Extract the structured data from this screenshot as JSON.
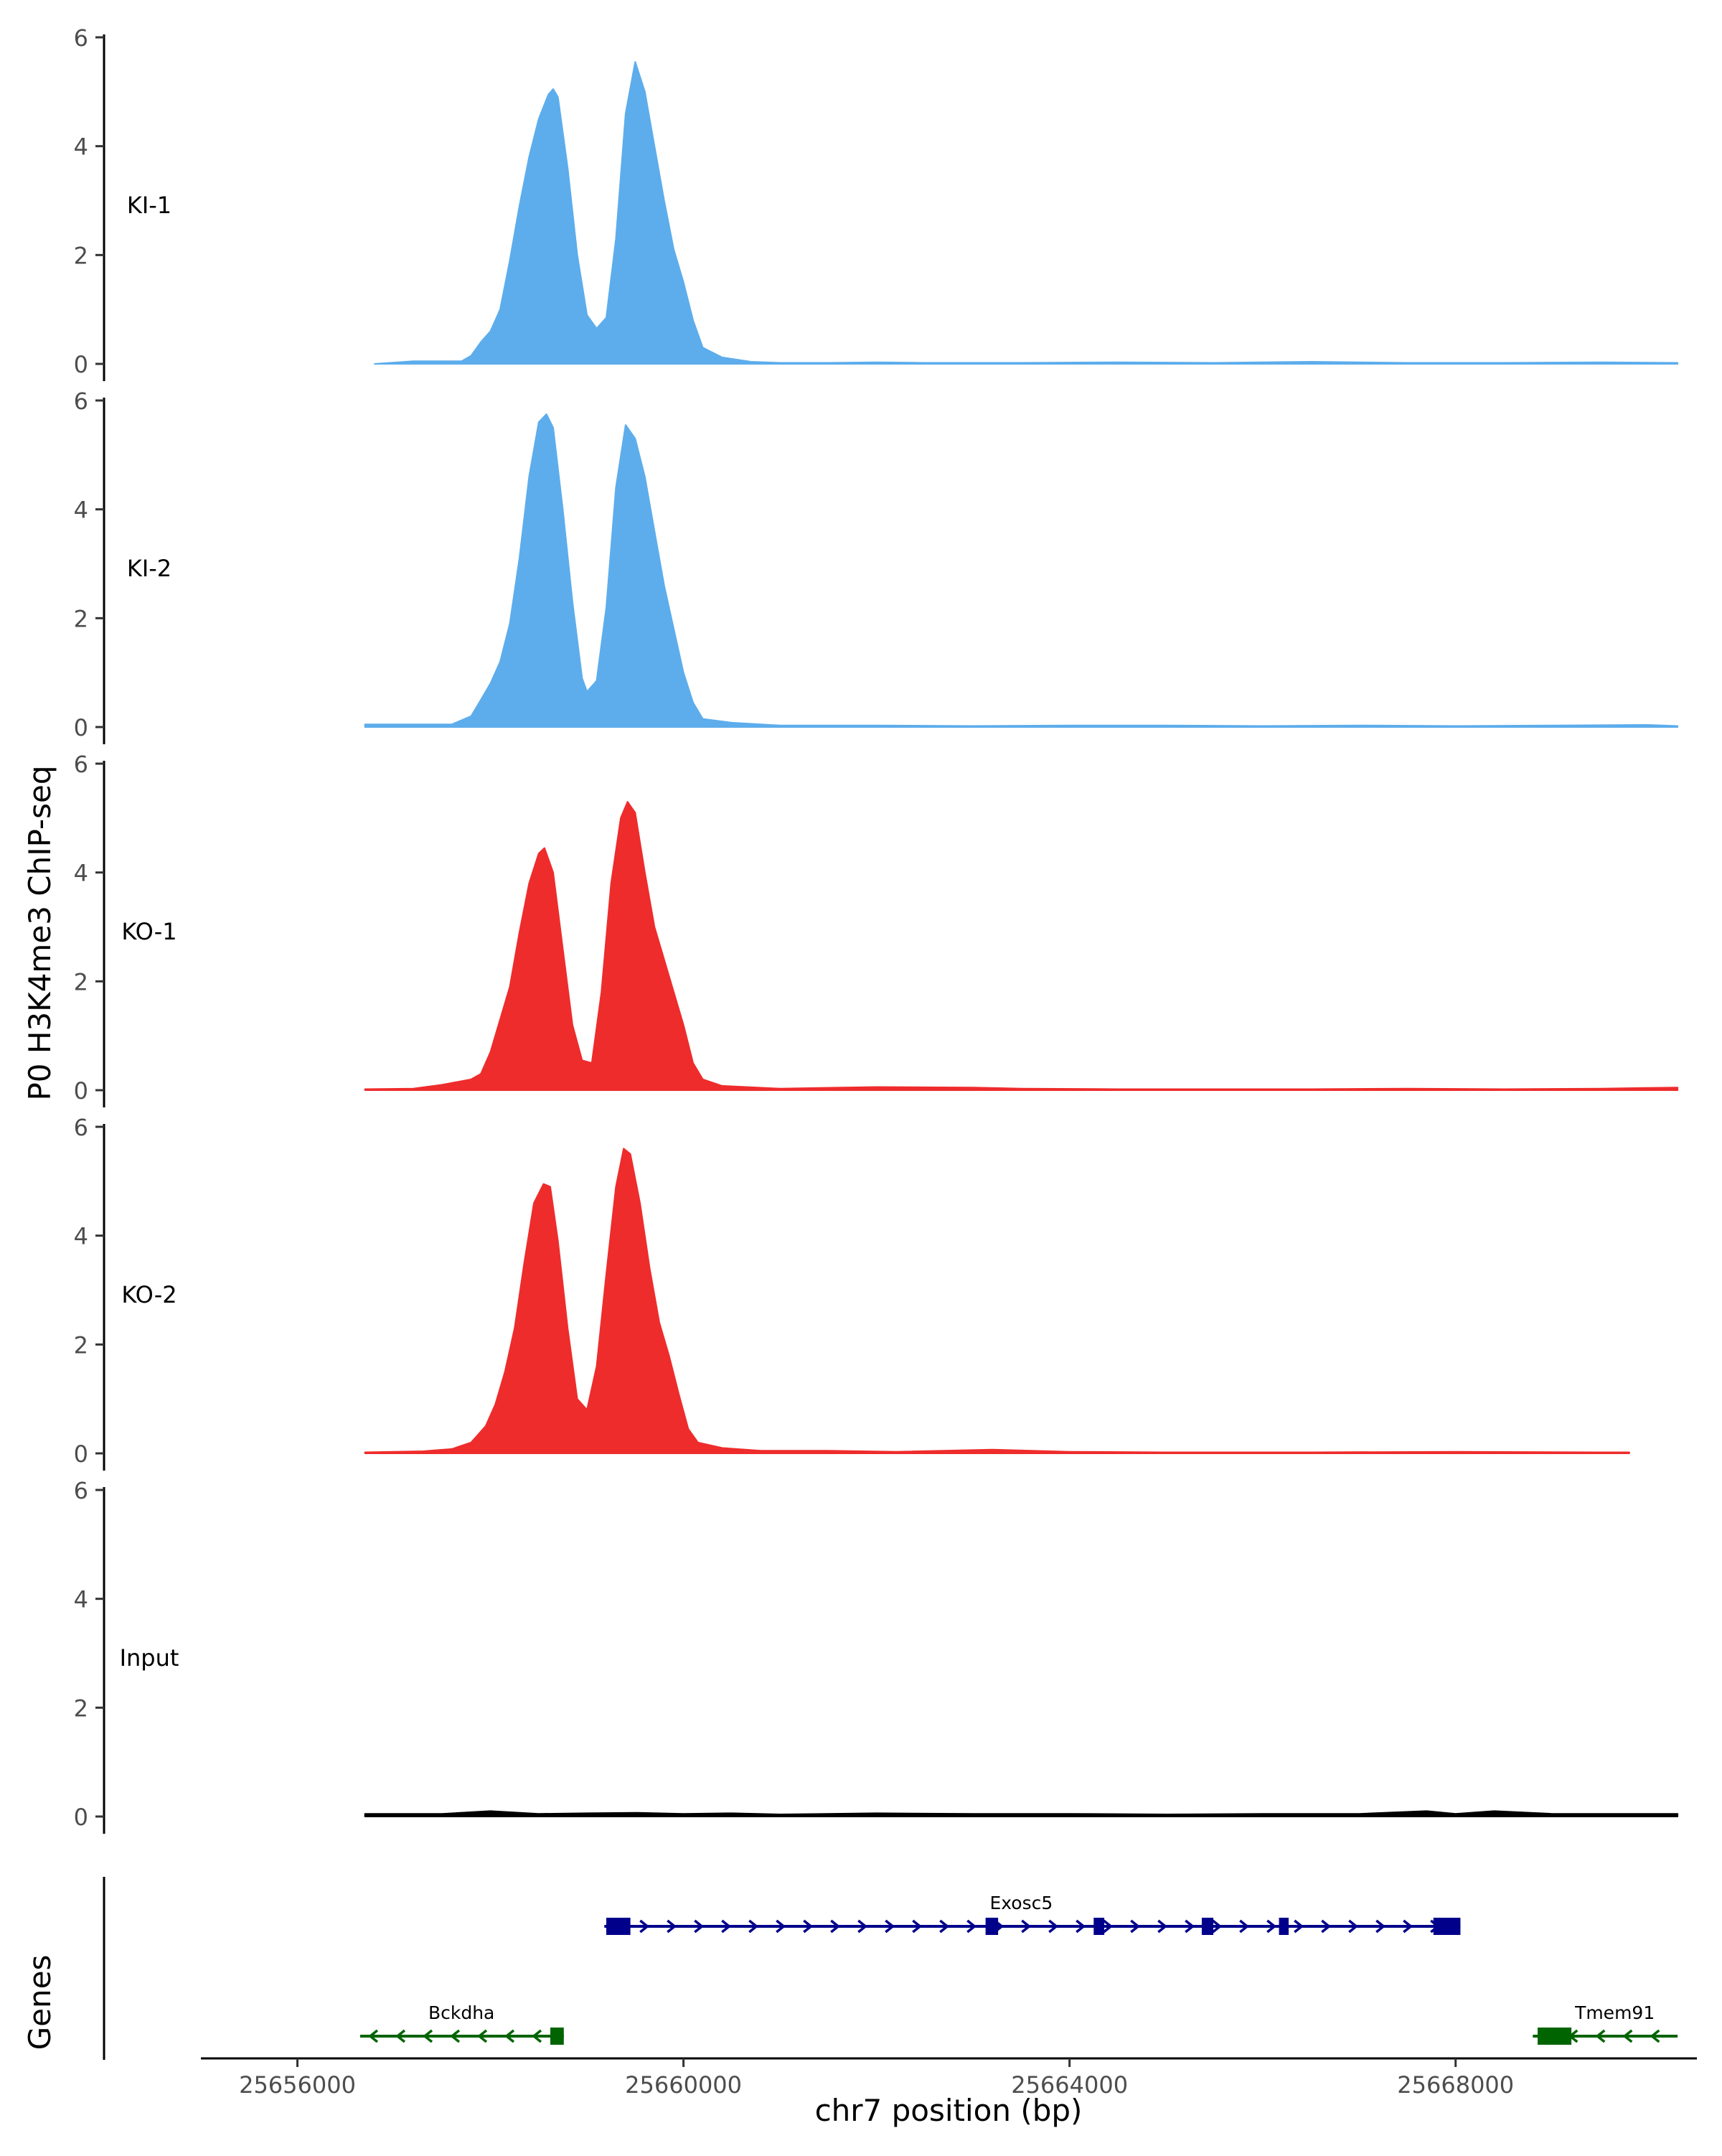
{
  "chart_data": {
    "type": "area",
    "title": "",
    "ylabel": "P0 H3K4me3 ChIP-seq",
    "xlabel": "chr7 position (bp)",
    "xlim": [
      25655000,
      25670500
    ],
    "ylim": [
      0,
      6
    ],
    "y_ticks": [
      "0",
      "2",
      "4",
      "6"
    ],
    "x_ticks": [
      {
        "value": 25656000,
        "label": "25656000"
      },
      {
        "value": 25660000,
        "label": "25660000"
      },
      {
        "value": 25664000,
        "label": "25664000"
      },
      {
        "value": 25668000,
        "label": "25668000"
      }
    ],
    "series": [
      {
        "name": "KI-1",
        "color": "#5DADEC",
        "points": [
          [
            25656800,
            0
          ],
          [
            25657200,
            0.05
          ],
          [
            25657700,
            0.05
          ],
          [
            25657800,
            0.15
          ],
          [
            25657900,
            0.4
          ],
          [
            25658000,
            0.6
          ],
          [
            25658100,
            1.0
          ],
          [
            25658200,
            1.9
          ],
          [
            25658300,
            2.9
          ],
          [
            25658400,
            3.8
          ],
          [
            25658500,
            4.5
          ],
          [
            25658600,
            4.95
          ],
          [
            25658650,
            5.05
          ],
          [
            25658700,
            4.9
          ],
          [
            25658800,
            3.6
          ],
          [
            25658900,
            2.0
          ],
          [
            25659000,
            0.9
          ],
          [
            25659100,
            0.65
          ],
          [
            25659200,
            0.85
          ],
          [
            25659300,
            2.3
          ],
          [
            25659400,
            4.6
          ],
          [
            25659500,
            5.55
          ],
          [
            25659600,
            5.0
          ],
          [
            25659700,
            4.0
          ],
          [
            25659800,
            3.0
          ],
          [
            25659900,
            2.1
          ],
          [
            25660000,
            1.5
          ],
          [
            25660100,
            0.8
          ],
          [
            25660200,
            0.3
          ],
          [
            25660400,
            0.12
          ],
          [
            25660700,
            0.04
          ],
          [
            25661000,
            0.02
          ],
          [
            25661500,
            0.02
          ],
          [
            25662000,
            0.03
          ],
          [
            25662500,
            0.02
          ],
          [
            25663500,
            0.02
          ],
          [
            25664500,
            0.03
          ],
          [
            25665500,
            0.02
          ],
          [
            25666500,
            0.04
          ],
          [
            25667500,
            0.02
          ],
          [
            25668500,
            0.02
          ],
          [
            25669500,
            0.03
          ],
          [
            25670300,
            0.02
          ],
          [
            25670300,
            0
          ]
        ]
      },
      {
        "name": "KI-2",
        "color": "#5DADEC",
        "points": [
          [
            25656700,
            0
          ],
          [
            25656700,
            0.05
          ],
          [
            25657000,
            0.05
          ],
          [
            25657600,
            0.05
          ],
          [
            25657800,
            0.2
          ],
          [
            25657900,
            0.5
          ],
          [
            25658000,
            0.8
          ],
          [
            25658100,
            1.2
          ],
          [
            25658200,
            1.9
          ],
          [
            25658300,
            3.1
          ],
          [
            25658400,
            4.6
          ],
          [
            25658500,
            5.6
          ],
          [
            25658580,
            5.75
          ],
          [
            25658650,
            5.5
          ],
          [
            25658750,
            4.0
          ],
          [
            25658850,
            2.3
          ],
          [
            25658950,
            0.9
          ],
          [
            25659000,
            0.65
          ],
          [
            25659100,
            0.85
          ],
          [
            25659200,
            2.2
          ],
          [
            25659300,
            4.4
          ],
          [
            25659400,
            5.55
          ],
          [
            25659500,
            5.3
          ],
          [
            25659600,
            4.6
          ],
          [
            25659700,
            3.6
          ],
          [
            25659800,
            2.6
          ],
          [
            25659900,
            1.8
          ],
          [
            25660000,
            1.0
          ],
          [
            25660100,
            0.45
          ],
          [
            25660200,
            0.15
          ],
          [
            25660500,
            0.08
          ],
          [
            25661000,
            0.03
          ],
          [
            25662000,
            0.03
          ],
          [
            25663000,
            0.02
          ],
          [
            25664000,
            0.03
          ],
          [
            25665000,
            0.03
          ],
          [
            25666000,
            0.02
          ],
          [
            25667000,
            0.03
          ],
          [
            25668000,
            0.02
          ],
          [
            25669000,
            0.03
          ],
          [
            25670000,
            0.04
          ],
          [
            25670300,
            0.02
          ],
          [
            25670300,
            0
          ]
        ]
      },
      {
        "name": "KO-1",
        "color": "#EE2C2C",
        "points": [
          [
            25656700,
            0
          ],
          [
            25656700,
            0.02
          ],
          [
            25657200,
            0.03
          ],
          [
            25657500,
            0.1
          ],
          [
            25657800,
            0.2
          ],
          [
            25657900,
            0.3
          ],
          [
            25658000,
            0.7
          ],
          [
            25658100,
            1.3
          ],
          [
            25658200,
            1.9
          ],
          [
            25658300,
            2.9
          ],
          [
            25658400,
            3.8
          ],
          [
            25658500,
            4.35
          ],
          [
            25658560,
            4.45
          ],
          [
            25658650,
            4.0
          ],
          [
            25658750,
            2.6
          ],
          [
            25658850,
            1.2
          ],
          [
            25658950,
            0.55
          ],
          [
            25659050,
            0.5
          ],
          [
            25659150,
            1.8
          ],
          [
            25659250,
            3.8
          ],
          [
            25659350,
            5.0
          ],
          [
            25659420,
            5.3
          ],
          [
            25659500,
            5.1
          ],
          [
            25659600,
            4.0
          ],
          [
            25659700,
            3.0
          ],
          [
            25659800,
            2.4
          ],
          [
            25659900,
            1.8
          ],
          [
            25660000,
            1.2
          ],
          [
            25660100,
            0.5
          ],
          [
            25660200,
            0.2
          ],
          [
            25660400,
            0.08
          ],
          [
            25661000,
            0.03
          ],
          [
            25662000,
            0.06
          ],
          [
            25663000,
            0.05
          ],
          [
            25663500,
            0.03
          ],
          [
            25664500,
            0.02
          ],
          [
            25665500,
            0.02
          ],
          [
            25666500,
            0.02
          ],
          [
            25667500,
            0.03
          ],
          [
            25668500,
            0.02
          ],
          [
            25669500,
            0.03
          ],
          [
            25670300,
            0.05
          ],
          [
            25670300,
            0
          ]
        ]
      },
      {
        "name": "KO-2",
        "color": "#EE2C2C",
        "points": [
          [
            25656700,
            0
          ],
          [
            25656700,
            0.02
          ],
          [
            25657300,
            0.04
          ],
          [
            25657600,
            0.08
          ],
          [
            25657800,
            0.2
          ],
          [
            25657950,
            0.5
          ],
          [
            25658050,
            0.9
          ],
          [
            25658150,
            1.5
          ],
          [
            25658250,
            2.3
          ],
          [
            25658350,
            3.5
          ],
          [
            25658450,
            4.6
          ],
          [
            25658550,
            4.95
          ],
          [
            25658620,
            4.9
          ],
          [
            25658700,
            3.9
          ],
          [
            25658800,
            2.3
          ],
          [
            25658900,
            1.0
          ],
          [
            25659000,
            0.8
          ],
          [
            25659100,
            1.6
          ],
          [
            25659200,
            3.3
          ],
          [
            25659300,
            4.9
          ],
          [
            25659380,
            5.6
          ],
          [
            25659450,
            5.5
          ],
          [
            25659550,
            4.6
          ],
          [
            25659650,
            3.4
          ],
          [
            25659750,
            2.4
          ],
          [
            25659850,
            1.8
          ],
          [
            25659950,
            1.1
          ],
          [
            25660050,
            0.45
          ],
          [
            25660150,
            0.2
          ],
          [
            25660400,
            0.1
          ],
          [
            25660800,
            0.05
          ],
          [
            25661500,
            0.05
          ],
          [
            25662200,
            0.03
          ],
          [
            25663200,
            0.07
          ],
          [
            25664000,
            0.03
          ],
          [
            25665000,
            0.02
          ],
          [
            25666500,
            0.02
          ],
          [
            25668000,
            0.03
          ],
          [
            25669500,
            0.02
          ],
          [
            25669800,
            0.02
          ],
          [
            25669800,
            0
          ]
        ]
      },
      {
        "name": "Input",
        "color": "#000000",
        "points": [
          [
            25656700,
            0
          ],
          [
            25656700,
            0.05
          ],
          [
            25657500,
            0.05
          ],
          [
            25658000,
            0.1
          ],
          [
            25658500,
            0.05
          ],
          [
            25659000,
            0.06
          ],
          [
            25659500,
            0.07
          ],
          [
            25660000,
            0.05
          ],
          [
            25660500,
            0.06
          ],
          [
            25661000,
            0.04
          ],
          [
            25662000,
            0.06
          ],
          [
            25663000,
            0.05
          ],
          [
            25664000,
            0.05
          ],
          [
            25665000,
            0.04
          ],
          [
            25666000,
            0.05
          ],
          [
            25667000,
            0.05
          ],
          [
            25667700,
            0.1
          ],
          [
            25668000,
            0.05
          ],
          [
            25668400,
            0.1
          ],
          [
            25669000,
            0.05
          ],
          [
            25669500,
            0.05
          ],
          [
            25670300,
            0.05
          ],
          [
            25670300,
            0
          ]
        ]
      }
    ],
    "genes_label": "Genes",
    "genes": [
      {
        "name": "Exosc5",
        "strand": "+",
        "color": "#00008B",
        "start": 25659180,
        "end": 25668050,
        "row": 0,
        "exons": [
          [
            25659200,
            25659450
          ],
          [
            25663130,
            25663260
          ],
          [
            25664250,
            25664360
          ],
          [
            25665370,
            25665490
          ],
          [
            25666170,
            25666270
          ],
          [
            25667770,
            25668050
          ]
        ]
      },
      {
        "name": "Bckdha",
        "strand": "-",
        "color": "#006400",
        "start": 25656650,
        "end": 25658760,
        "row": 1,
        "exons": [
          [
            25658620,
            25658760
          ]
        ]
      },
      {
        "name": "Tmem91",
        "strand": "-",
        "color": "#006400",
        "start": 25668800,
        "end": 25670300,
        "row": 1,
        "exons": [
          [
            25668850,
            25669200
          ]
        ]
      }
    ]
  }
}
